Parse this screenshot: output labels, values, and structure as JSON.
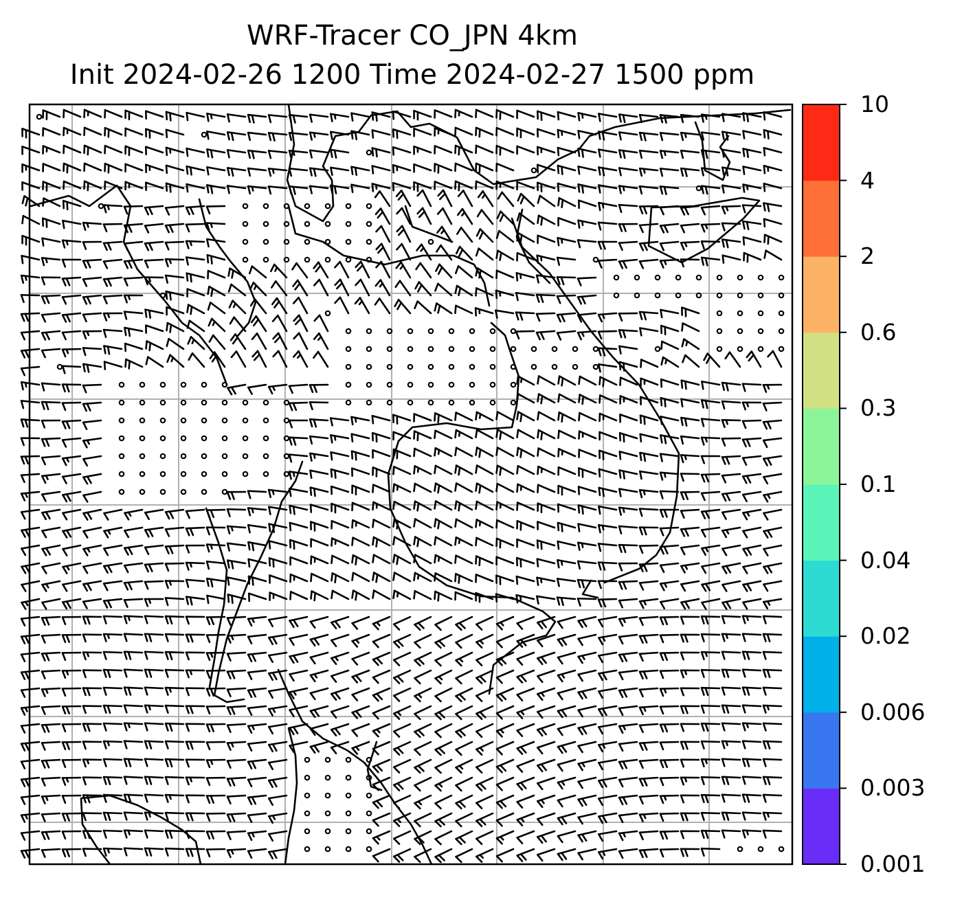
{
  "title": {
    "line1": "WRF-Tracer CO_JPN 4km",
    "line2": "Init 2024-02-26 1200 Time 2024-02-27 1500 ppm"
  },
  "colorbar": {
    "levels": [
      "0.001",
      "0.003",
      "0.006",
      "0.02",
      "0.04",
      "0.1",
      "0.3",
      "0.6",
      "2",
      "4",
      "10"
    ],
    "colors": [
      "#6a2cf7",
      "#3877f0",
      "#00b0e8",
      "#2ddbd2",
      "#5cf5b9",
      "#8cf59a",
      "#d2e184",
      "#fdb365",
      "#ff7038",
      "#fe2a16"
    ]
  },
  "map": {
    "line_color": "#000000",
    "grid_color": "#b0b0b0",
    "background": "#ffffff"
  }
}
